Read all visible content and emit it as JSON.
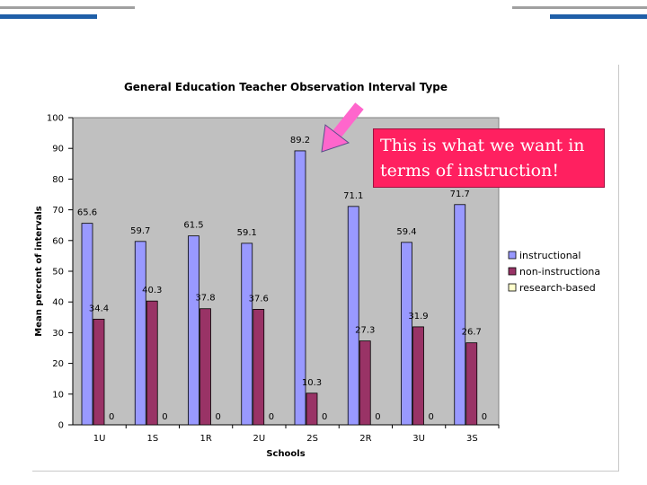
{
  "theme": {
    "plot_bg": "#c0c0c0",
    "series_colors": [
      "#9999ff",
      "#993366",
      "#ffffcc"
    ],
    "callout_color": "#ff2060",
    "arrow_color": "#ff66cc"
  },
  "callout": {
    "text": "This is what we want in terms of instruction!"
  },
  "chart_data": {
    "type": "bar",
    "title": "General Education Teacher Observation Interval Type",
    "xlabel": "Schools",
    "ylabel": "Mean percent of intervals",
    "ylim": [
      0,
      100
    ],
    "yticks": [
      0,
      10,
      20,
      30,
      40,
      50,
      60,
      70,
      80,
      90,
      100
    ],
    "categories": [
      "1U",
      "1S",
      "1R",
      "2U",
      "2S",
      "2R",
      "3U",
      "3S"
    ],
    "legend_position": "right",
    "grid": false,
    "series": [
      {
        "name": "instructional",
        "values": [
          65.6,
          59.7,
          61.5,
          59.1,
          89.2,
          71.1,
          59.4,
          71.7
        ]
      },
      {
        "name": "non-instructiona",
        "values": [
          34.4,
          40.3,
          37.8,
          37.6,
          10.3,
          27.3,
          31.9,
          26.7
        ]
      },
      {
        "name": "research-based",
        "values": [
          0,
          0,
          0,
          0,
          0,
          0,
          0,
          0
        ]
      }
    ]
  }
}
